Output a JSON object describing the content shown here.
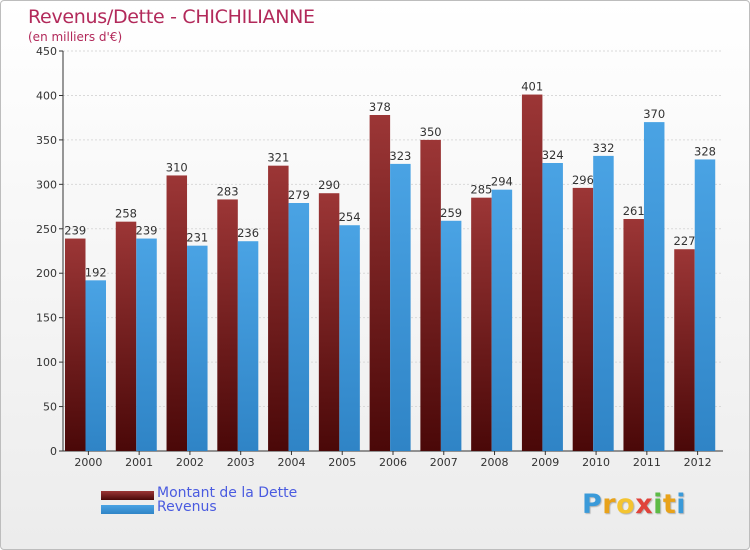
{
  "title": "Revenus/Dette - CHICHILIANNE",
  "subtitle": "(en milliers d'€)",
  "logo": {
    "letters": [
      "P",
      "r",
      "o",
      "x",
      "i",
      "t",
      "i"
    ],
    "colors": [
      "#3a9ad9",
      "#e8a21a",
      "#f4c430",
      "#e0433b",
      "#5dbb46",
      "#e8a21a",
      "#3a9ad9"
    ]
  },
  "colors": {
    "dette": "#7b1f1f",
    "dette_light": "#9c3636",
    "revenus": "#4aa3e4",
    "revenus_dark": "#2f84c6",
    "axis": "#333333",
    "grid": "#d9d9d9"
  },
  "chart_data": {
    "type": "bar",
    "title": "Revenus/Dette - CHICHILIANNE",
    "ylabel": "(en milliers d'€)",
    "xlabel": "",
    "categories": [
      "2000",
      "2001",
      "2002",
      "2003",
      "2004",
      "2005",
      "2006",
      "2007",
      "2008",
      "2009",
      "2010",
      "2011",
      "2012"
    ],
    "series": [
      {
        "name": "Montant de la Dette",
        "values": [
          239,
          258,
          310,
          283,
          321,
          290,
          378,
          350,
          285,
          401,
          296,
          261,
          227
        ]
      },
      {
        "name": "Revenus",
        "values": [
          192,
          239,
          231,
          236,
          279,
          254,
          323,
          259,
          294,
          324,
          332,
          370,
          328
        ]
      }
    ],
    "ylim": [
      0,
      450
    ],
    "yticks": [
      0,
      50,
      100,
      150,
      200,
      250,
      300,
      350,
      400,
      450
    ],
    "grid": true,
    "legend": "bottom-left"
  }
}
